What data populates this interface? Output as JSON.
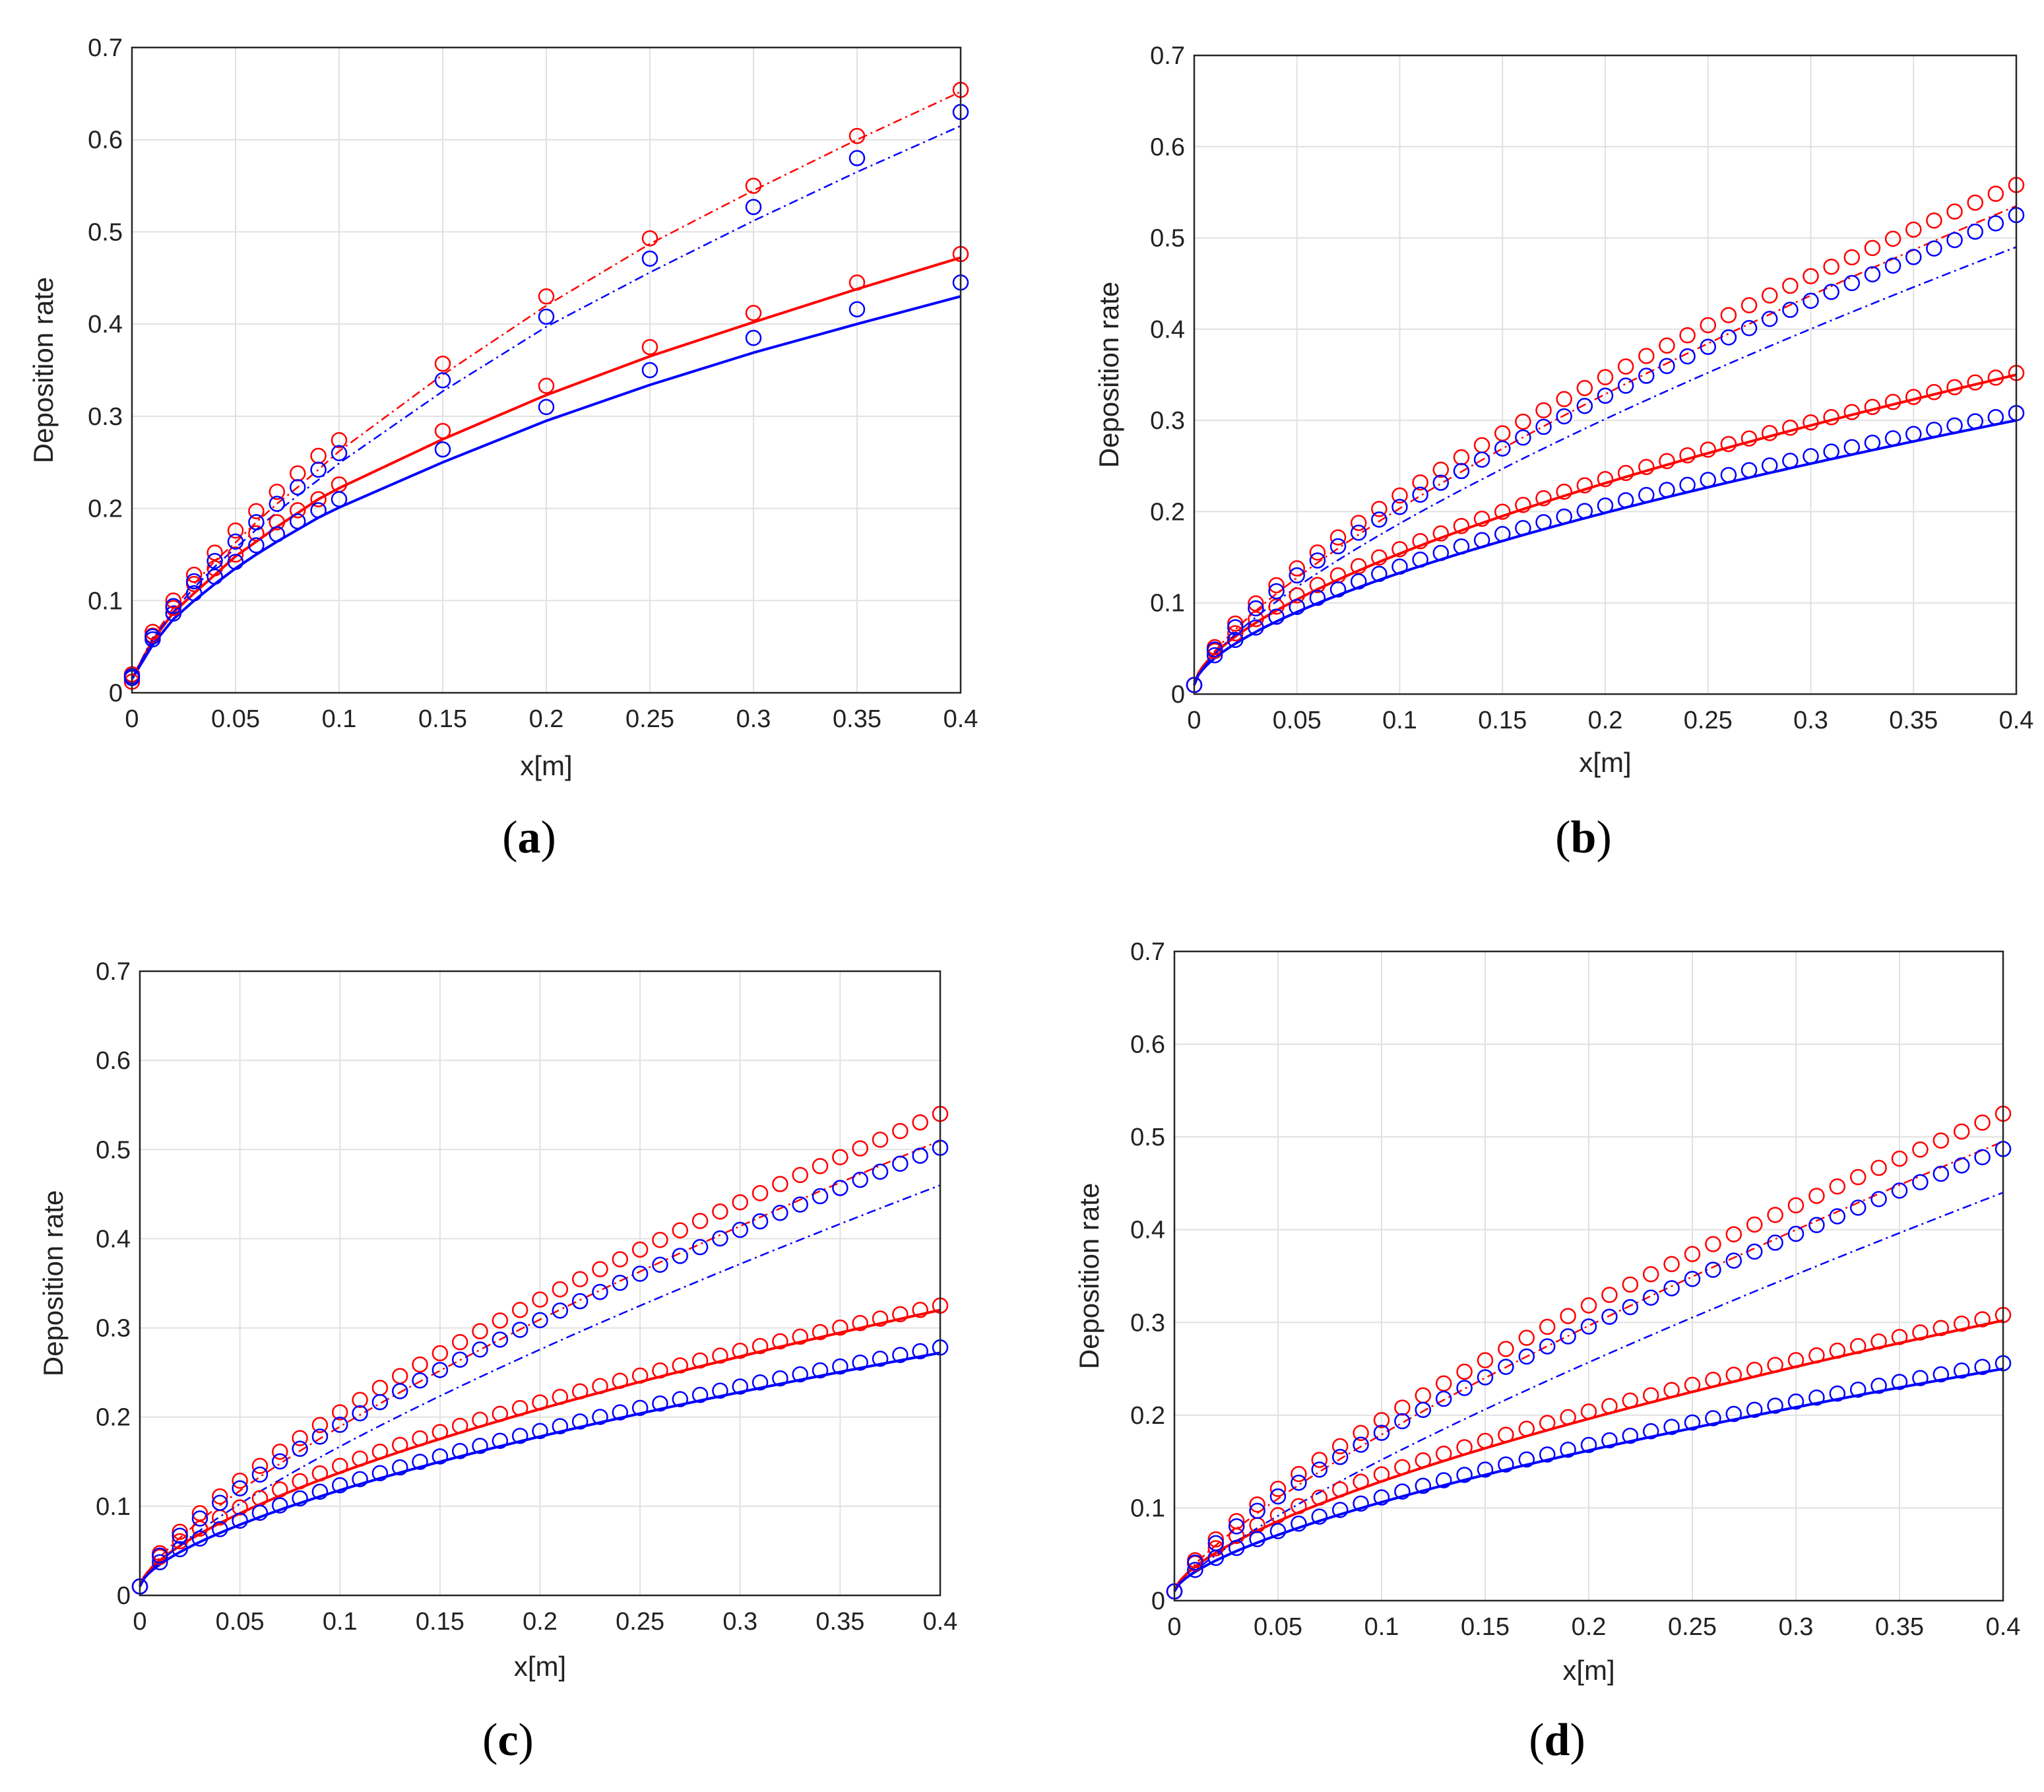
{
  "colors": {
    "red": "#ff0000",
    "blue": "#0000ff",
    "grid": "#e1e1e1",
    "axis": "#262626"
  },
  "chart_data": [
    {
      "type": "line",
      "panel": "a",
      "label": "a",
      "xlabel": "x[m]",
      "ylabel": "Deposition rate",
      "xlim": [
        0,
        0.4
      ],
      "ylim": [
        0,
        0.7
      ],
      "xticks": [
        0,
        0.05,
        0.1,
        0.15,
        0.2,
        0.25,
        0.3,
        0.35,
        0.4
      ],
      "xticklabels": [
        "0",
        "0.05",
        "0.1",
        "0.15",
        "0.2",
        "0.25",
        "0.3",
        "0.35",
        "0.4"
      ],
      "yticks": [
        0,
        0.1,
        0.2,
        0.3,
        0.4,
        0.5,
        0.6,
        0.7
      ],
      "yticklabels": [
        "0",
        "0.1",
        "0.2",
        "0.3",
        "0.4",
        "0.5",
        "0.6",
        "0.7"
      ],
      "grid": true,
      "x": [
        0,
        0.01,
        0.02,
        0.03,
        0.04,
        0.05,
        0.06,
        0.07,
        0.08,
        0.09,
        0.1,
        0.15,
        0.2,
        0.25,
        0.3,
        0.35,
        0.4
      ],
      "series": [
        {
          "name": "red solid line",
          "color": "red",
          "style": "solid",
          "points": [
            [
              0,
              0.015
            ],
            [
              0.01,
              0.057
            ],
            [
              0.02,
              0.087
            ],
            [
              0.03,
              0.108
            ],
            [
              0.04,
              0.128
            ],
            [
              0.05,
              0.148
            ],
            [
              0.06,
              0.164
            ],
            [
              0.07,
              0.18
            ],
            [
              0.08,
              0.195
            ],
            [
              0.09,
              0.21
            ],
            [
              0.1,
              0.222
            ],
            [
              0.15,
              0.275
            ],
            [
              0.2,
              0.323
            ],
            [
              0.25,
              0.365
            ],
            [
              0.3,
              0.402
            ],
            [
              0.35,
              0.438
            ],
            [
              0.4,
              0.472
            ]
          ]
        },
        {
          "name": "blue solid line",
          "color": "blue",
          "style": "solid",
          "points": [
            [
              0,
              0.015
            ],
            [
              0.01,
              0.052
            ],
            [
              0.02,
              0.08
            ],
            [
              0.03,
              0.1
            ],
            [
              0.04,
              0.118
            ],
            [
              0.05,
              0.135
            ],
            [
              0.06,
              0.15
            ],
            [
              0.07,
              0.164
            ],
            [
              0.08,
              0.177
            ],
            [
              0.09,
              0.19
            ],
            [
              0.1,
              0.201
            ],
            [
              0.15,
              0.25
            ],
            [
              0.2,
              0.295
            ],
            [
              0.25,
              0.334
            ],
            [
              0.3,
              0.369
            ],
            [
              0.35,
              0.4
            ],
            [
              0.4,
              0.43
            ]
          ]
        },
        {
          "name": "red dash-dot line",
          "color": "red",
          "style": "dashdot",
          "points": [
            [
              0,
              0.015
            ],
            [
              0.01,
              0.06
            ],
            [
              0.02,
              0.092
            ],
            [
              0.03,
              0.118
            ],
            [
              0.04,
              0.143
            ],
            [
              0.05,
              0.163
            ],
            [
              0.06,
              0.185
            ],
            [
              0.07,
              0.205
            ],
            [
              0.08,
              0.223
            ],
            [
              0.09,
              0.242
            ],
            [
              0.1,
              0.262
            ],
            [
              0.15,
              0.345
            ],
            [
              0.2,
              0.42
            ],
            [
              0.25,
              0.487
            ],
            [
              0.3,
              0.545
            ],
            [
              0.35,
              0.6
            ],
            [
              0.4,
              0.652
            ]
          ]
        },
        {
          "name": "blue dash-dot line",
          "color": "blue",
          "style": "dashdot",
          "points": [
            [
              0,
              0.015
            ],
            [
              0.01,
              0.058
            ],
            [
              0.02,
              0.088
            ],
            [
              0.03,
              0.114
            ],
            [
              0.04,
              0.137
            ],
            [
              0.05,
              0.157
            ],
            [
              0.06,
              0.177
            ],
            [
              0.07,
              0.196
            ],
            [
              0.08,
              0.214
            ],
            [
              0.09,
              0.231
            ],
            [
              0.1,
              0.249
            ],
            [
              0.15,
              0.327
            ],
            [
              0.2,
              0.397
            ],
            [
              0.25,
              0.456
            ],
            [
              0.3,
              0.512
            ],
            [
              0.35,
              0.565
            ],
            [
              0.4,
              0.615
            ]
          ]
        },
        {
          "name": "red circles (solid)",
          "color": "red",
          "style": "markers",
          "points": [
            [
              0,
              0.012
            ],
            [
              0.01,
              0.062
            ],
            [
              0.02,
              0.092
            ],
            [
              0.03,
              0.118
            ],
            [
              0.04,
              0.135
            ],
            [
              0.05,
              0.15
            ],
            [
              0.06,
              0.173
            ],
            [
              0.07,
              0.185
            ],
            [
              0.08,
              0.198
            ],
            [
              0.09,
              0.21
            ],
            [
              0.1,
              0.226
            ],
            [
              0.15,
              0.284
            ],
            [
              0.2,
              0.333
            ],
            [
              0.25,
              0.375
            ],
            [
              0.3,
              0.412
            ],
            [
              0.35,
              0.445
            ],
            [
              0.4,
              0.476
            ]
          ]
        },
        {
          "name": "blue circles (solid)",
          "color": "blue",
          "style": "markers",
          "points": [
            [
              0,
              0.016
            ],
            [
              0.01,
              0.058
            ],
            [
              0.02,
              0.086
            ],
            [
              0.03,
              0.108
            ],
            [
              0.04,
              0.126
            ],
            [
              0.05,
              0.142
            ],
            [
              0.06,
              0.16
            ],
            [
              0.07,
              0.172
            ],
            [
              0.08,
              0.186
            ],
            [
              0.09,
              0.198
            ],
            [
              0.1,
              0.21
            ],
            [
              0.15,
              0.264
            ],
            [
              0.2,
              0.31
            ],
            [
              0.25,
              0.35
            ],
            [
              0.3,
              0.385
            ],
            [
              0.35,
              0.416
            ],
            [
              0.4,
              0.445
            ]
          ]
        },
        {
          "name": "red circles (dash-dot)",
          "color": "red",
          "style": "markers",
          "points": [
            [
              0,
              0.02
            ],
            [
              0.01,
              0.066
            ],
            [
              0.02,
              0.1
            ],
            [
              0.03,
              0.128
            ],
            [
              0.04,
              0.152
            ],
            [
              0.05,
              0.176
            ],
            [
              0.06,
              0.197
            ],
            [
              0.07,
              0.218
            ],
            [
              0.08,
              0.238
            ],
            [
              0.09,
              0.257
            ],
            [
              0.1,
              0.274
            ],
            [
              0.15,
              0.357
            ],
            [
              0.2,
              0.43
            ],
            [
              0.25,
              0.493
            ],
            [
              0.3,
              0.55
            ],
            [
              0.35,
              0.604
            ],
            [
              0.4,
              0.654
            ]
          ]
        },
        {
          "name": "blue circles (dash-dot)",
          "color": "blue",
          "style": "markers",
          "points": [
            [
              0,
              0.018
            ],
            [
              0.01,
              0.061
            ],
            [
              0.02,
              0.094
            ],
            [
              0.03,
              0.121
            ],
            [
              0.04,
              0.143
            ],
            [
              0.05,
              0.164
            ],
            [
              0.06,
              0.185
            ],
            [
              0.07,
              0.205
            ],
            [
              0.08,
              0.223
            ],
            [
              0.09,
              0.242
            ],
            [
              0.1,
              0.26
            ],
            [
              0.15,
              0.339
            ],
            [
              0.2,
              0.408
            ],
            [
              0.25,
              0.471
            ],
            [
              0.3,
              0.527
            ],
            [
              0.35,
              0.58
            ],
            [
              0.4,
              0.63
            ]
          ]
        }
      ]
    },
    {
      "type": "line",
      "panel": "b",
      "label": "b",
      "xlabel": "x[m]",
      "ylabel": "Deposition rate",
      "xlim": [
        0,
        0.4
      ],
      "ylim": [
        0,
        0.7
      ],
      "xticks": [
        0,
        0.05,
        0.1,
        0.15,
        0.2,
        0.25,
        0.3,
        0.35,
        0.4
      ],
      "xticklabels": [
        "0",
        "0.05",
        "0.1",
        "0.15",
        "0.2",
        "0.25",
        "0.3",
        "0.35",
        "0.4"
      ],
      "yticks": [
        0,
        0.1,
        0.2,
        0.3,
        0.4,
        0.5,
        0.6,
        0.7
      ],
      "yticklabels": [
        "0",
        "0.1",
        "0.2",
        "0.3",
        "0.4",
        "0.5",
        "0.6",
        "0.7"
      ],
      "grid": true,
      "curves": [
        {
          "name": "red solid line",
          "color": "red",
          "style": "solid",
          "end": 0.35,
          "exp": 0.62,
          "start": 0.01
        },
        {
          "name": "blue solid line",
          "color": "blue",
          "style": "solid",
          "end": 0.3,
          "exp": 0.62,
          "start": 0.01
        },
        {
          "name": "red dash-dot line",
          "color": "red",
          "style": "dashdot",
          "end": 0.535,
          "exp": 0.72,
          "start": 0.01
        },
        {
          "name": "blue dash-dot line",
          "color": "blue",
          "style": "dashdot",
          "end": 0.49,
          "exp": 0.72,
          "start": 0.01
        }
      ],
      "markers": [
        {
          "name": "red circles (solid)",
          "color": "red",
          "end": 0.352,
          "exp": 0.6,
          "start": 0.01
        },
        {
          "name": "blue circles (solid)",
          "color": "blue",
          "end": 0.308,
          "exp": 0.6,
          "start": 0.01
        },
        {
          "name": "red circles (dash-dot)",
          "color": "red",
          "end": 0.558,
          "exp": 0.7,
          "start": 0.01
        },
        {
          "name": "blue circles (dash-dot)",
          "color": "blue",
          "end": 0.525,
          "exp": 0.7,
          "start": 0.01
        }
      ],
      "marker_x": {
        "from": 0,
        "to": 0.4,
        "step": 0.01
      }
    },
    {
      "type": "line",
      "panel": "c",
      "label": "c",
      "xlabel": "x[m]",
      "ylabel": "Deposition rate",
      "xlim": [
        0,
        0.4
      ],
      "ylim": [
        0,
        0.7
      ],
      "xticks": [
        0,
        0.05,
        0.1,
        0.15,
        0.2,
        0.25,
        0.3,
        0.35,
        0.4
      ],
      "xticklabels": [
        "0",
        "0.05",
        "0.1",
        "0.15",
        "0.2",
        "0.25",
        "0.3",
        "0.35",
        "0.4"
      ],
      "yticks": [
        0,
        0.1,
        0.2,
        0.3,
        0.4,
        0.5,
        0.6,
        0.7
      ],
      "yticklabels": [
        "0",
        "0.1",
        "0.2",
        "0.3",
        "0.4",
        "0.5",
        "0.6",
        "0.7"
      ],
      "grid": true,
      "curves": [
        {
          "name": "red solid line",
          "color": "red",
          "style": "solid",
          "end": 0.32,
          "exp": 0.64,
          "start": 0.01
        },
        {
          "name": "blue solid line",
          "color": "blue",
          "style": "solid",
          "end": 0.272,
          "exp": 0.64,
          "start": 0.01
        },
        {
          "name": "red dash-dot line",
          "color": "red",
          "style": "dashdot",
          "end": 0.51,
          "exp": 0.74,
          "start": 0.01
        },
        {
          "name": "blue dash-dot line",
          "color": "blue",
          "style": "dashdot",
          "end": 0.46,
          "exp": 0.76,
          "start": 0.01
        }
      ],
      "markers": [
        {
          "name": "red circles (solid)",
          "color": "red",
          "end": 0.325,
          "exp": 0.61,
          "start": 0.01
        },
        {
          "name": "blue circles (solid)",
          "color": "blue",
          "end": 0.278,
          "exp": 0.62,
          "start": 0.01
        },
        {
          "name": "red circles (dash-dot)",
          "color": "red",
          "end": 0.54,
          "exp": 0.72,
          "start": 0.01
        },
        {
          "name": "blue circles (dash-dot)",
          "color": "blue",
          "end": 0.502,
          "exp": 0.72,
          "start": 0.01
        }
      ],
      "marker_x": {
        "from": 0,
        "to": 0.4,
        "step": 0.01
      }
    },
    {
      "type": "line",
      "panel": "d",
      "label": "d",
      "xlabel": "x[m]",
      "ylabel": "Deposition rate",
      "xlim": [
        0,
        0.4
      ],
      "ylim": [
        0,
        0.7
      ],
      "xticks": [
        0,
        0.05,
        0.1,
        0.15,
        0.2,
        0.25,
        0.3,
        0.35,
        0.4
      ],
      "xticklabels": [
        "0",
        "0.05",
        "0.1",
        "0.15",
        "0.2",
        "0.25",
        "0.3",
        "0.35",
        "0.4"
      ],
      "yticks": [
        0,
        0.1,
        0.2,
        0.3,
        0.4,
        0.5,
        0.6,
        0.7
      ],
      "yticklabels": [
        "0",
        "0.1",
        "0.2",
        "0.3",
        "0.4",
        "0.5",
        "0.6",
        "0.7"
      ],
      "grid": true,
      "curves": [
        {
          "name": "red solid line",
          "color": "red",
          "style": "solid",
          "end": 0.302,
          "exp": 0.65,
          "start": 0.01
        },
        {
          "name": "blue solid line",
          "color": "blue",
          "style": "solid",
          "end": 0.25,
          "exp": 0.66,
          "start": 0.01
        },
        {
          "name": "red dash-dot line",
          "color": "red",
          "style": "dashdot",
          "end": 0.495,
          "exp": 0.76,
          "start": 0.01
        },
        {
          "name": "blue dash-dot line",
          "color": "blue",
          "style": "dashdot",
          "end": 0.44,
          "exp": 0.8,
          "start": 0.01
        }
      ],
      "markers": [
        {
          "name": "red circles (solid)",
          "color": "red",
          "end": 0.308,
          "exp": 0.62,
          "start": 0.01
        },
        {
          "name": "blue circles (solid)",
          "color": "blue",
          "end": 0.256,
          "exp": 0.64,
          "start": 0.01
        },
        {
          "name": "red circles (dash-dot)",
          "color": "red",
          "end": 0.525,
          "exp": 0.74,
          "start": 0.01
        },
        {
          "name": "blue circles (dash-dot)",
          "color": "blue",
          "end": 0.487,
          "exp": 0.74,
          "start": 0.01
        }
      ],
      "marker_x": {
        "from": 0,
        "to": 0.4,
        "step": 0.01
      }
    }
  ]
}
